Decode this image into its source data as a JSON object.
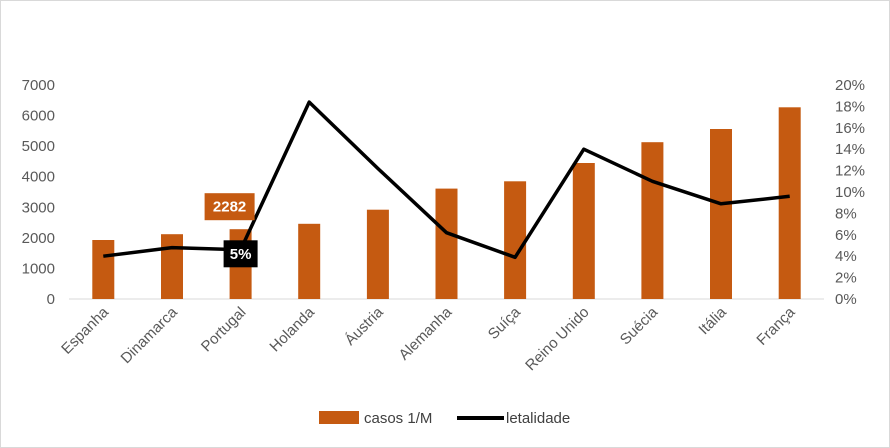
{
  "chart_data": {
    "type": "bar",
    "categories": [
      "Espanha",
      "Dinamarca",
      "Portugal",
      "Holanda",
      "Áustria",
      "Alemanha",
      "Suíça",
      "Reino Unido",
      "Suécia",
      "Itália",
      "França"
    ],
    "series": [
      {
        "name": "casos 1/M",
        "type": "bar",
        "axis": "left",
        "color": "#c55a11",
        "values": [
          1930,
          2120,
          2282,
          2460,
          2920,
          3610,
          3850,
          4450,
          5130,
          5560,
          6270
        ]
      },
      {
        "name": "letalidade",
        "type": "line",
        "axis": "right",
        "color": "#000000",
        "values": [
          4.0,
          4.8,
          4.6,
          18.4,
          12.2,
          6.2,
          3.9,
          14.0,
          11.0,
          8.9,
          9.6
        ]
      }
    ],
    "y_left": {
      "ylim": [
        0,
        7000
      ],
      "ticks": [
        0,
        1000,
        2000,
        3000,
        4000,
        5000,
        6000,
        7000
      ],
      "tick_labels": [
        "0",
        "1000",
        "2000",
        "3000",
        "4000",
        "5000",
        "6000",
        "7000"
      ]
    },
    "y_right": {
      "ylim": [
        0,
        20
      ],
      "ticks": [
        0,
        2,
        4,
        6,
        8,
        10,
        12,
        14,
        16,
        18,
        20
      ],
      "tick_labels": [
        "0%",
        "2%",
        "4%",
        "6%",
        "8%",
        "10%",
        "12%",
        "14%",
        "16%",
        "18%",
        "20%"
      ]
    },
    "annotations": [
      {
        "category": "Portugal",
        "series": "casos 1/M",
        "text": "2282",
        "color": "#c55a11"
      },
      {
        "category": "Portugal",
        "series": "letalidade",
        "text": "5%",
        "color": "#000000"
      }
    ],
    "title": "",
    "grid": false,
    "legend_position": "bottom"
  }
}
